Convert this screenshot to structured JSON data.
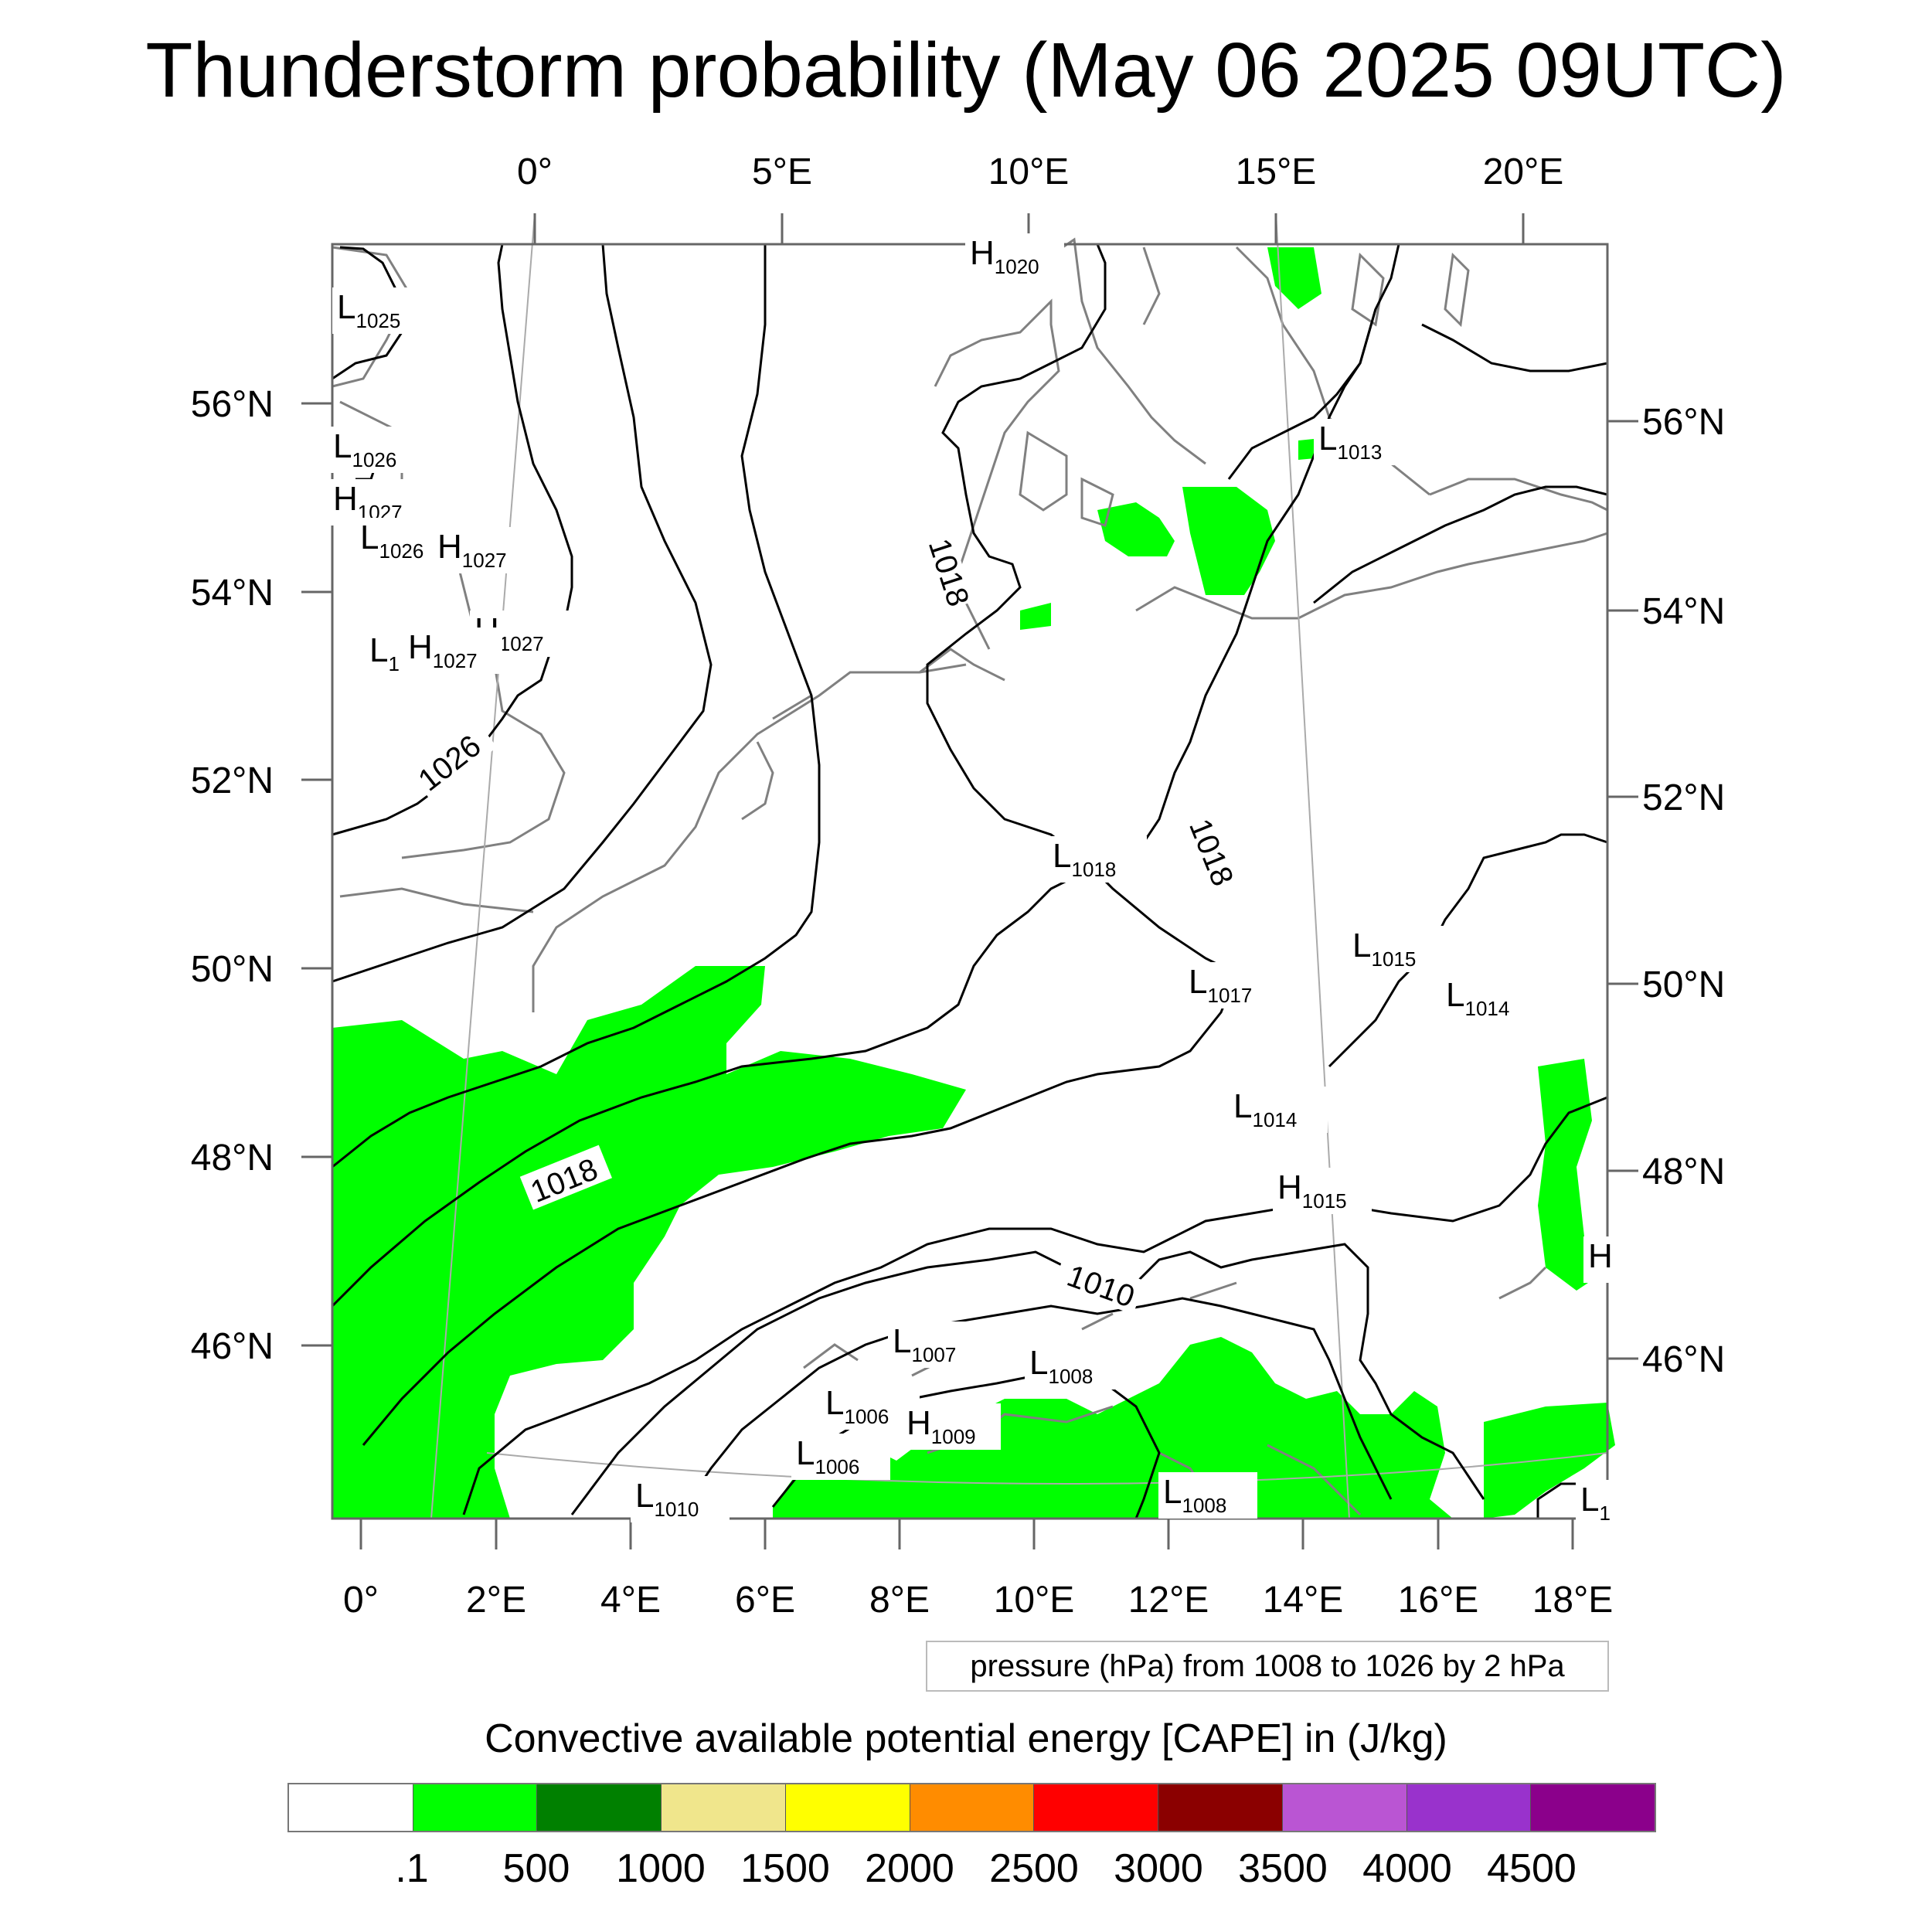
{
  "title": "Thunderstorm probability (May 06 2025 09UTC)",
  "pressure_note": "pressure (hPa) from 1008 to 1026 by 2 hPa",
  "cape_title": "Convective available potential energy [CAPE] in (J/kg)",
  "top_lon_labels": [
    "0°",
    "5°E",
    "10°E",
    "15°E",
    "20°E"
  ],
  "bottom_lon_labels": [
    "0°",
    "2°E",
    "4°E",
    "6°E",
    "8°E",
    "10°E",
    "12°E",
    "14°E",
    "16°E",
    "18°E"
  ],
  "left_lat_labels": [
    "56°N",
    "54°N",
    "52°N",
    "50°N",
    "48°N",
    "46°N"
  ],
  "right_lat_labels": [
    "56°N",
    "54°N",
    "52°N",
    "50°N",
    "48°N",
    "46°N"
  ],
  "isobar_labels": [
    "1026",
    "1018",
    "1018",
    "1018",
    "1010"
  ],
  "pressure_centers": [
    {
      "t": "H",
      "v": "1020"
    },
    {
      "t": "L",
      "v": "1025"
    },
    {
      "t": "L",
      "v": "1026"
    },
    {
      "t": "H",
      "v": "1027"
    },
    {
      "t": "L",
      "v": "1026"
    },
    {
      "t": "H",
      "v": "1027"
    },
    {
      "t": "H",
      "v": "1027"
    },
    {
      "t": "L",
      "v": "1"
    },
    {
      "t": "H",
      "v": "1027"
    },
    {
      "t": "L",
      "v": "1013"
    },
    {
      "t": "L",
      "v": "1018"
    },
    {
      "t": "L",
      "v": "1015"
    },
    {
      "t": "L",
      "v": "1017"
    },
    {
      "t": "L",
      "v": "1014"
    },
    {
      "t": "L",
      "v": "1014"
    },
    {
      "t": "H",
      "v": "1015"
    },
    {
      "t": "H",
      "v": ""
    },
    {
      "t": "L",
      "v": "1007"
    },
    {
      "t": "L",
      "v": "1008"
    },
    {
      "t": "L",
      "v": "1006"
    },
    {
      "t": "H",
      "v": "1009"
    },
    {
      "t": "L",
      "v": "1006"
    },
    {
      "t": "L",
      "v": "1010"
    },
    {
      "t": "L",
      "v": "1008"
    },
    {
      "t": "L",
      "v": "1"
    }
  ],
  "colorbar": {
    "colors": [
      "#ffffff",
      "#00ff00",
      "#008000",
      "#f0e68c",
      "#ffff00",
      "#ff8c00",
      "#ff0000",
      "#8b0000",
      "#ba55d3",
      "#9932cc",
      "#8b008b"
    ],
    "labels": [
      ".1",
      "500",
      "1000",
      "1500",
      "2000",
      "2500",
      "3000",
      "3500",
      "4000",
      "4500"
    ]
  },
  "colors": {
    "cape_fill": "#00ff00",
    "coast": "#808080",
    "isobar": "#000000"
  }
}
